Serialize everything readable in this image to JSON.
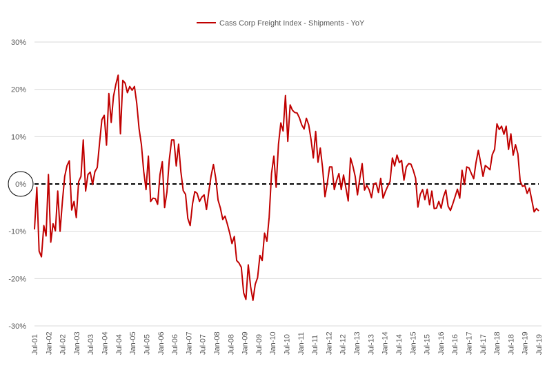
{
  "chart_data": {
    "type": "line",
    "title": "",
    "legend": {
      "position": "top-center",
      "entries": [
        "Cass Corp Freight Index - Shipments - YoY"
      ]
    },
    "xlabel": "",
    "ylabel": "",
    "ylim": [
      -30,
      30
    ],
    "yticks": [
      30,
      20,
      10,
      0,
      -10,
      -20,
      -30
    ],
    "ytick_labels": [
      "30%",
      "20%",
      "10%",
      "0%",
      "-10%",
      "-20%",
      "-30%"
    ],
    "grid": true,
    "reference_line": {
      "value": 0,
      "style": "dashed",
      "color": "#000000"
    },
    "highlight": {
      "label": "0%",
      "shape": "circle"
    },
    "x_start": "Jul-01",
    "x_end": "Jul-19",
    "x_ticks": [
      "Jul-01",
      "Jan-02",
      "Jul-02",
      "Jan-03",
      "Jul-03",
      "Jan-04",
      "Jul-04",
      "Jan-05",
      "Jul-05",
      "Jan-06",
      "Jul-06",
      "Jan-07",
      "Jul-07",
      "Jan-08",
      "Jul-08",
      "Jan-09",
      "Jul-09",
      "Jan-10",
      "Jul-10",
      "Jan-11",
      "Jul-11",
      "Jan-12",
      "Jul-12",
      "Jan-13",
      "Jul-13",
      "Jan-14",
      "Jul-14",
      "Jan-15",
      "Jul-15",
      "Jan-16",
      "Jul-16",
      "Jan-17",
      "Jul-17",
      "Jan-18",
      "Jul-18",
      "Jan-19",
      "Jul-19"
    ],
    "series": [
      {
        "name": "Cass Corp Freight Index - Shipments - YoY",
        "color": "#C00000",
        "frequency": "monthly",
        "values": [
          -9.6,
          -0.7,
          -14.2,
          -15.4,
          -8.8,
          -11,
          2,
          -12.3,
          -8.4,
          -9.9,
          -1.5,
          -10,
          -3.8,
          1.6,
          3.9,
          4.9,
          -5.5,
          -3.7,
          -7.1,
          0.5,
          1.6,
          9.3,
          -1.5,
          2,
          2.5,
          -0.1,
          2.6,
          3.5,
          8.6,
          13.6,
          14.5,
          8.2,
          19.1,
          13,
          18.5,
          21,
          23,
          10.6,
          21.9,
          21.3,
          19.3,
          20.6,
          19.8,
          20.6,
          17.1,
          11.7,
          8.3,
          2.7,
          -1.2,
          5.9,
          -3.7,
          -3.0,
          -3.1,
          -4.3,
          2,
          4.7,
          -5,
          -1.7,
          5.1,
          9.3,
          9.3,
          3.8,
          8.4,
          2.6,
          -1.4,
          -2.2,
          -7.3,
          -8.8,
          -4.2,
          -1.6,
          -2.0,
          -3.7,
          -2.8,
          -2.3,
          -5.4,
          -1.7,
          1.7,
          4.1,
          1.2,
          -3.4,
          -5.1,
          -7.5,
          -6.8,
          -8.5,
          -10.4,
          -12.6,
          -11.1,
          -16.2,
          -16.7,
          -17.6,
          -23,
          -24.4,
          -17.1,
          -21.7,
          -24.6,
          -21.2,
          -19.8,
          -15.1,
          -16.2,
          -10.4,
          -12.1,
          -7,
          2.2,
          5.9,
          -0.7,
          8.4,
          12.9,
          11.2,
          18.7,
          9.0,
          16.7,
          15.6,
          15.1,
          15.0,
          14.0,
          12.5,
          11.6,
          13.9,
          12.5,
          9.4,
          5.5,
          11.1,
          4.6,
          7.6,
          3.3,
          -2.7,
          0.2,
          3.6,
          3.6,
          -1.2,
          0.7,
          2.2,
          -1.2,
          1.9,
          -0.8,
          -3.6,
          5.5,
          3.8,
          1.6,
          -2.3,
          1.2,
          4.3,
          -1.3,
          -0.3,
          -1.2,
          -2.9,
          0,
          0.2,
          -1.8,
          1.2,
          -3.0,
          -1.6,
          -0.5,
          0.5,
          5.5,
          3.8,
          6.1,
          4.5,
          5.0,
          0.8,
          3.6,
          4.3,
          4.2,
          2.9,
          1.2,
          -4.9,
          -2.2,
          -1.2,
          -3.3,
          -1.1,
          -4.4,
          -1.5,
          -5.2,
          -5.1,
          -3.7,
          -5.1,
          -2.7,
          -1.3,
          -4.7,
          -5.6,
          -4.2,
          -2.7,
          -1.1,
          -3.0,
          2.9,
          -0.1,
          3.6,
          3.4,
          2.2,
          1.1,
          4.5,
          7.1,
          4.5,
          1.6,
          3.9,
          3.5,
          3.0,
          6.2,
          7.3,
          12.7,
          11.5,
          12.2,
          10.5,
          12.2,
          7.3,
          10.6,
          6.1,
          8.3,
          6.4,
          0.6,
          -0.5,
          -0.3,
          -2.0,
          -0.9,
          -3.4,
          -5.9,
          -5.2,
          -5.7
        ]
      }
    ]
  }
}
